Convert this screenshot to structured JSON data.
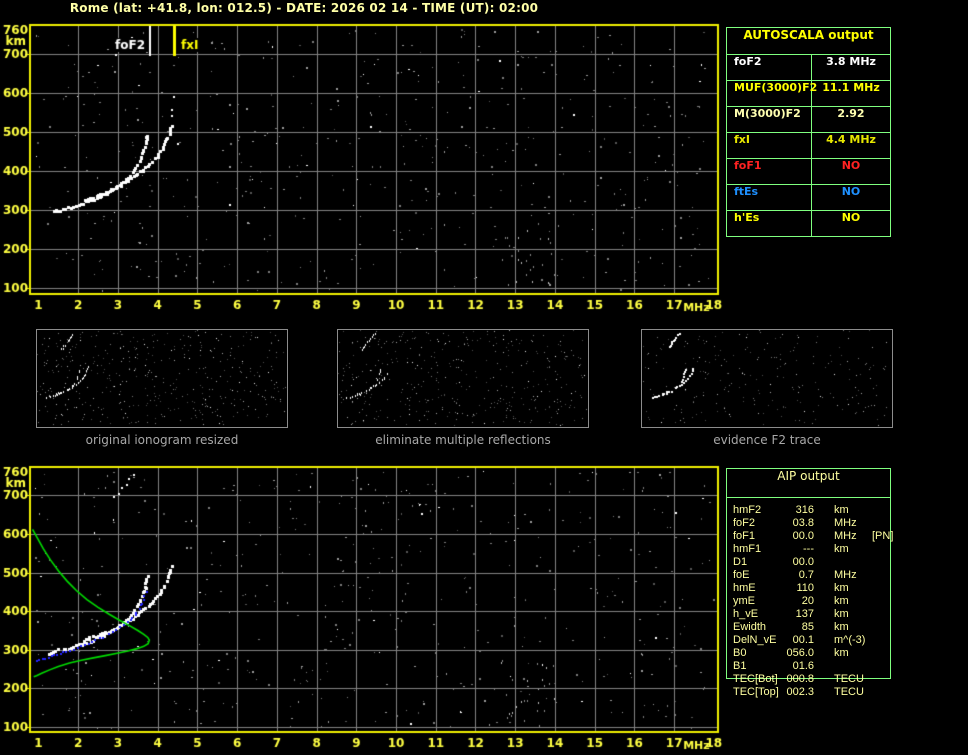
{
  "title": "Rome (lat: +41.8, lon: 012.5) - DATE: 2026 02 14 - TIME (UT): 02:00",
  "colors": {
    "background": "#000000",
    "axis_yellow": "#F0F000",
    "tick_label_yellow": "#FFFF42",
    "title_yellow": "#FFFFA6",
    "grid_gray": "#848484",
    "noise_gray": "#7C7C7C",
    "trace_white": "#FFFFFF",
    "table_border_green": "#7FFF7F",
    "aip_text": "#FFFFA0",
    "profile_green": "#00DD00",
    "restored_blue": "#2222FF",
    "caption_gray": "#A8A8A8"
  },
  "autoscala": {
    "title": "AUTOSCALA output",
    "rows": [
      {
        "label": "foF2",
        "value": "3.8 MHz",
        "color": "#FFFFFF"
      },
      {
        "label": "MUF(3000)F2",
        "value": "11.1 MHz",
        "color": "#FFFF00"
      },
      {
        "label": "M(3000)F2",
        "value": "2.92",
        "color": "#FFFFB0"
      },
      {
        "label": "fxI",
        "value": "4.4 MHz",
        "color": "#E8E800"
      },
      {
        "label": "foF1",
        "value": "NO",
        "color": "#FF2222"
      },
      {
        "label": "ftEs",
        "value": "NO",
        "color": "#1E90FF"
      },
      {
        "label": "h'Es",
        "value": "NO",
        "color": "#FFFF00"
      }
    ]
  },
  "aip": {
    "title": "AIP output",
    "rows": [
      {
        "label": "hmF2",
        "value": "316",
        "unit": "km",
        "extra": ""
      },
      {
        "label": "foF2",
        "value": "03.8",
        "unit": "MHz",
        "extra": ""
      },
      {
        "label": "foF1",
        "value": "00.0",
        "unit": "MHz",
        "extra": "[PN]"
      },
      {
        "label": "hmF1",
        "value": "---",
        "unit": "km",
        "extra": ""
      },
      {
        "label": "D1",
        "value": "00.0",
        "unit": "",
        "extra": ""
      },
      {
        "label": "foE",
        "value": "0.7",
        "unit": "MHz",
        "extra": ""
      },
      {
        "label": "hmE",
        "value": "110",
        "unit": "km",
        "extra": ""
      },
      {
        "label": "ymE",
        "value": "20",
        "unit": "km",
        "extra": ""
      },
      {
        "label": "h_vE",
        "value": "137",
        "unit": "km",
        "extra": ""
      },
      {
        "label": "Ewidth",
        "value": "85",
        "unit": "km",
        "extra": ""
      },
      {
        "label": "DelN_vE",
        "value": "00.1",
        "unit": "m^(-3)",
        "extra": ""
      },
      {
        "label": "B0",
        "value": "056.0",
        "unit": "km",
        "extra": ""
      },
      {
        "label": "B1",
        "value": "01.6",
        "unit": "",
        "extra": ""
      },
      {
        "label": "TEC[Bot]",
        "value": "000.8",
        "unit": "TECU",
        "extra": ""
      },
      {
        "label": "TEC[Top]",
        "value": "002.3",
        "unit": "TECU",
        "extra": ""
      }
    ]
  },
  "thumbnails": [
    {
      "caption": "original ionogram resized"
    },
    {
      "caption": "eliminate multiple reflections"
    },
    {
      "caption": "evidence F2 trace"
    }
  ],
  "chart_data": [
    {
      "id": "top-ionogram",
      "type": "scatter",
      "xlabel": "MHz",
      "ylabel": "km",
      "x_ticks": [
        1,
        2,
        3,
        4,
        5,
        6,
        7,
        8,
        9,
        10,
        11,
        12,
        13,
        14,
        15,
        16,
        17,
        18
      ],
      "y_ticks": [
        760,
        700,
        600,
        500,
        400,
        300,
        200,
        100
      ],
      "xlim": [
        0.82,
        18.1
      ],
      "ylim": [
        90,
        772
      ],
      "grid": true,
      "markers": [
        {
          "label": "foF2",
          "freq": 3.81,
          "color": "#FFFFFF",
          "side": "left"
        },
        {
          "label": "fxI",
          "freq": 4.4,
          "color": "#FFFF00",
          "side": "right"
        }
      ],
      "series": [
        {
          "name": "F2-ordinary-trace",
          "color": "#FFFFFF",
          "style": "blocks",
          "points": [
            [
              1.38,
              296
            ],
            [
              1.5,
              299
            ],
            [
              1.62,
              302
            ],
            [
              1.75,
              305
            ],
            [
              1.9,
              309
            ],
            [
              2.05,
              314
            ],
            [
              2.2,
              319
            ],
            [
              2.35,
              325
            ],
            [
              2.5,
              332
            ],
            [
              2.65,
              339
            ],
            [
              2.8,
              347
            ],
            [
              2.95,
              357
            ],
            [
              3.1,
              368
            ],
            [
              3.25,
              381
            ],
            [
              3.38,
              396
            ],
            [
              3.48,
              412
            ],
            [
              3.57,
              430
            ],
            [
              3.64,
              449
            ],
            [
              3.69,
              466
            ],
            [
              3.72,
              482
            ],
            [
              3.74,
              492
            ],
            [
              3.75,
              500
            ]
          ]
        },
        {
          "name": "F2-extraordinary-trace",
          "color": "#FFFFFF",
          "style": "blocks",
          "points": [
            [
              2.15,
              325
            ],
            [
              2.3,
              330
            ],
            [
              2.45,
              335
            ],
            [
              2.6,
              341
            ],
            [
              2.75,
              348
            ],
            [
              2.9,
              355
            ],
            [
              3.05,
              363
            ],
            [
              3.2,
              372
            ],
            [
              3.35,
              382
            ],
            [
              3.5,
              393
            ],
            [
              3.65,
              405
            ],
            [
              3.8,
              418
            ],
            [
              3.95,
              433
            ],
            [
              4.08,
              450
            ],
            [
              4.18,
              468
            ],
            [
              4.26,
              487
            ],
            [
              4.31,
              503
            ],
            [
              4.34,
              515
            ],
            [
              4.35,
              522
            ]
          ]
        },
        {
          "name": "x-trace-spread",
          "color": "#FFFFFF",
          "style": "dots2",
          "points": [
            [
              4.36,
              540
            ],
            [
              4.37,
              556
            ],
            [
              4.38,
              572
            ],
            [
              4.39,
              588
            ],
            [
              4.4,
              600
            ]
          ]
        },
        {
          "name": "second-hop-fragment",
          "color": "#FFFFFF",
          "style": "dots2",
          "points": [
            [
              2.95,
              697
            ],
            [
              3.05,
              706
            ],
            [
              3.15,
              716
            ],
            [
              3.25,
              728
            ],
            [
              3.35,
              741
            ],
            [
              3.44,
              754
            ],
            [
              3.51,
              766
            ]
          ]
        }
      ]
    },
    {
      "id": "bottom-ionogram-with-profile",
      "type": "scatter",
      "xlabel": "MHz",
      "ylabel": "km",
      "x_ticks": [
        1,
        2,
        3,
        4,
        5,
        6,
        7,
        8,
        9,
        10,
        11,
        12,
        13,
        14,
        15,
        16,
        17,
        18
      ],
      "y_ticks": [
        760,
        700,
        600,
        500,
        400,
        300,
        200,
        100
      ],
      "xlim": [
        0.82,
        18.1
      ],
      "ylim": [
        90,
        772
      ],
      "grid": true,
      "markers": [],
      "series": [
        {
          "name": "F2-ordinary-trace",
          "color": "#FFFFFF",
          "style": "blocks",
          "points": [
            [
              1.25,
              292
            ],
            [
              1.38,
              296
            ],
            [
              1.5,
              299
            ],
            [
              1.62,
              302
            ],
            [
              1.75,
              305
            ],
            [
              1.9,
              309
            ],
            [
              2.05,
              314
            ],
            [
              2.2,
              319
            ],
            [
              2.35,
              325
            ],
            [
              2.5,
              332
            ],
            [
              2.65,
              339
            ],
            [
              2.8,
              347
            ],
            [
              2.95,
              357
            ],
            [
              3.1,
              368
            ],
            [
              3.25,
              381
            ],
            [
              3.38,
              396
            ],
            [
              3.48,
              412
            ],
            [
              3.57,
              430
            ],
            [
              3.64,
              449
            ],
            [
              3.69,
              466
            ],
            [
              3.72,
              482
            ],
            [
              3.74,
              492
            ],
            [
              3.75,
              500
            ]
          ]
        },
        {
          "name": "F2-extraordinary-trace",
          "color": "#FFFFFF",
          "style": "blocks",
          "points": [
            [
              2.15,
              325
            ],
            [
              2.3,
              330
            ],
            [
              2.45,
              335
            ],
            [
              2.6,
              341
            ],
            [
              2.75,
              348
            ],
            [
              2.9,
              355
            ],
            [
              3.05,
              363
            ],
            [
              3.2,
              372
            ],
            [
              3.35,
              382
            ],
            [
              3.5,
              393
            ],
            [
              3.65,
              405
            ],
            [
              3.8,
              418
            ],
            [
              3.95,
              433
            ],
            [
              4.08,
              450
            ],
            [
              4.18,
              468
            ],
            [
              4.26,
              487
            ],
            [
              4.31,
              503
            ],
            [
              4.34,
              515
            ],
            [
              4.35,
              522
            ]
          ]
        },
        {
          "name": "second-hop-fragment",
          "color": "#FFFFFF",
          "style": "dots2",
          "points": [
            [
              2.9,
              695
            ],
            [
              3.0,
              705
            ],
            [
              3.1,
              716
            ],
            [
              3.2,
              728
            ],
            [
              3.3,
              741
            ],
            [
              3.38,
              753
            ],
            [
              3.45,
              765
            ]
          ]
        },
        {
          "name": "restored-ordinary-trace",
          "color": "#2222FF",
          "style": "dots",
          "points": [
            [
              0.95,
              272
            ],
            [
              1.1,
              276
            ],
            [
              1.25,
              280
            ],
            [
              1.4,
              285
            ],
            [
              1.55,
              290
            ],
            [
              1.72,
              295
            ],
            [
              1.9,
              301
            ],
            [
              2.08,
              308
            ],
            [
              2.26,
              315
            ],
            [
              2.44,
              323
            ],
            [
              2.62,
              332
            ],
            [
              2.8,
              341
            ],
            [
              2.98,
              351
            ],
            [
              3.15,
              363
            ],
            [
              3.3,
              376
            ],
            [
              3.43,
              390
            ],
            [
              3.54,
              406
            ],
            [
              3.62,
              422
            ],
            [
              3.68,
              438
            ],
            [
              3.72,
              450
            ],
            [
              3.74,
              456
            ]
          ]
        },
        {
          "name": "electron-density-profile",
          "color": "#00DD00",
          "style": "line",
          "points": [
            [
              0.85,
              612
            ],
            [
              0.98,
              588
            ],
            [
              1.12,
              562
            ],
            [
              1.3,
              533
            ],
            [
              1.5,
              505
            ],
            [
              1.72,
              478
            ],
            [
              1.96,
              453
            ],
            [
              2.22,
              430
            ],
            [
              2.5,
              410
            ],
            [
              2.78,
              392
            ],
            [
              3.05,
              376
            ],
            [
              3.3,
              362
            ],
            [
              3.5,
              350
            ],
            [
              3.65,
              340
            ],
            [
              3.75,
              332
            ],
            [
              3.79,
              325
            ],
            [
              3.76,
              316
            ],
            [
              3.65,
              309
            ],
            [
              3.48,
              303
            ],
            [
              3.25,
              297
            ],
            [
              2.98,
              291
            ],
            [
              2.68,
              285
            ],
            [
              2.38,
              279
            ],
            [
              2.08,
              273
            ],
            [
              1.78,
              266
            ],
            [
              1.5,
              257
            ],
            [
              1.28,
              248
            ],
            [
              1.08,
              239
            ],
            [
              0.95,
              233
            ],
            [
              0.88,
              230
            ]
          ]
        }
      ]
    }
  ],
  "thumbnail_trace_extra": {
    "name": "second-hop-trace",
    "points": [
      [
        2.5,
        640
      ],
      [
        2.65,
        660
      ],
      [
        2.8,
        682
      ],
      [
        2.95,
        702
      ],
      [
        3.1,
        722
      ],
      [
        3.25,
        742
      ],
      [
        3.4,
        760
      ]
    ]
  }
}
